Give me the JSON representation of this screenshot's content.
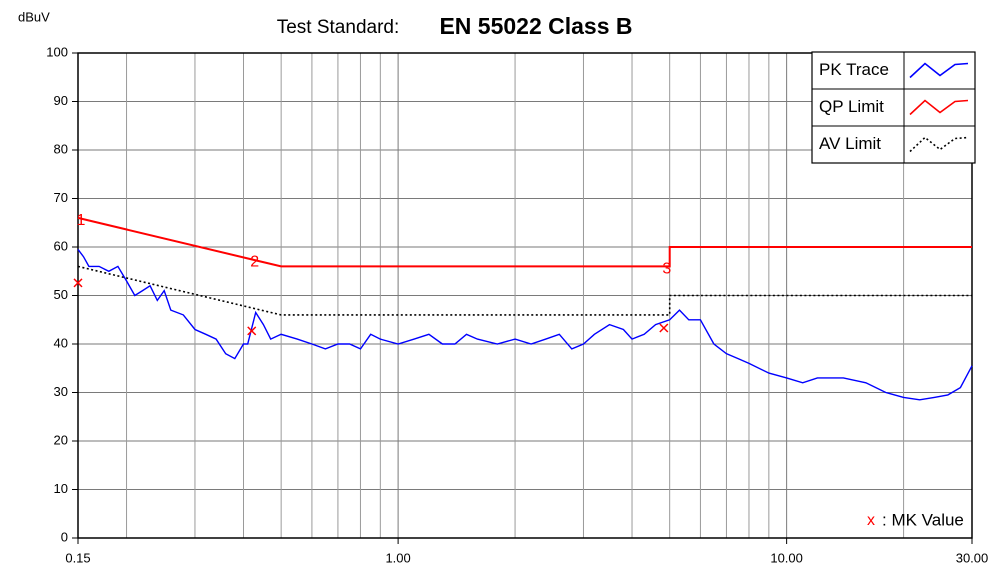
{
  "chart_data": {
    "type": "line",
    "title": "Test Standard:",
    "subtitle": "EN 55022 Class B",
    "y_label": "dBuV",
    "xscale": "log",
    "grid": true,
    "legend": "top-right",
    "xlim": [
      0.15,
      30
    ],
    "xticks": [
      0.15,
      {
        "value": 1,
        "label": "1.00"
      },
      {
        "value": 10,
        "label": "10.00"
      },
      {
        "value": 30,
        "label": "30.00"
      }
    ],
    "xminor_ticks": [
      0.2,
      0.3,
      0.4,
      0.5,
      0.6,
      0.7,
      0.8,
      0.9,
      2,
      3,
      4,
      5,
      6,
      7,
      8,
      9,
      20
    ],
    "ylim": [
      0,
      100
    ],
    "yticks": [
      0,
      10,
      20,
      30,
      40,
      50,
      60,
      70,
      80,
      90,
      100
    ],
    "series": [
      {
        "name": "PK Trace",
        "color": "#0000ff",
        "style": "solid",
        "x": [
          0.15,
          0.155,
          0.16,
          0.17,
          0.18,
          0.19,
          0.2,
          0.21,
          0.22,
          0.23,
          0.24,
          0.25,
          0.26,
          0.28,
          0.3,
          0.32,
          0.34,
          0.36,
          0.38,
          0.4,
          0.41,
          0.43,
          0.45,
          0.47,
          0.5,
          0.55,
          0.6,
          0.65,
          0.7,
          0.75,
          0.8,
          0.85,
          0.9,
          1.0,
          1.1,
          1.2,
          1.3,
          1.4,
          1.5,
          1.6,
          1.8,
          2.0,
          2.2,
          2.4,
          2.6,
          2.8,
          3.0,
          3.2,
          3.5,
          3.8,
          4.0,
          4.3,
          4.6,
          5.0,
          5.3,
          5.6,
          6.0,
          6.5,
          7.0,
          7.5,
          8.0,
          9.0,
          10,
          11,
          12,
          14,
          16,
          18,
          20,
          22,
          24,
          26,
          28,
          30
        ],
        "values": [
          59.5,
          58,
          56,
          56,
          55,
          56,
          53,
          50,
          51,
          52,
          49,
          51,
          47,
          46,
          43,
          42,
          41,
          38,
          37,
          40,
          40,
          46.5,
          44,
          41,
          42,
          41,
          40,
          39,
          40,
          40,
          39,
          42,
          41,
          40,
          41,
          42,
          40,
          40,
          42,
          41,
          40,
          41,
          40,
          41,
          42,
          39,
          40,
          42,
          44,
          43,
          41,
          42,
          44,
          45,
          47,
          45,
          45,
          40,
          38,
          37,
          36,
          34,
          33,
          32,
          33,
          33,
          32,
          30,
          29,
          28.5,
          29,
          29.5,
          31,
          35.5
        ]
      },
      {
        "name": "QP Limit",
        "color": "#ff0000",
        "style": "solid",
        "x": [
          0.15,
          0.5,
          5,
          5,
          30
        ],
        "values": [
          66,
          56,
          56,
          60,
          60
        ]
      },
      {
        "name": "AV Limit",
        "color": "#000000",
        "style": "dotted",
        "x": [
          0.15,
          0.5,
          5,
          5,
          30
        ],
        "values": [
          56,
          46,
          46,
          50,
          50
        ]
      }
    ],
    "markers": {
      "symbol": "x",
      "name": ": MK Value",
      "color": "#ff0000",
      "labels": [
        "1",
        "2",
        "3"
      ],
      "x": [
        0.15,
        0.42,
        4.83
      ],
      "values": [
        52.6,
        42.7,
        43.3
      ]
    }
  }
}
